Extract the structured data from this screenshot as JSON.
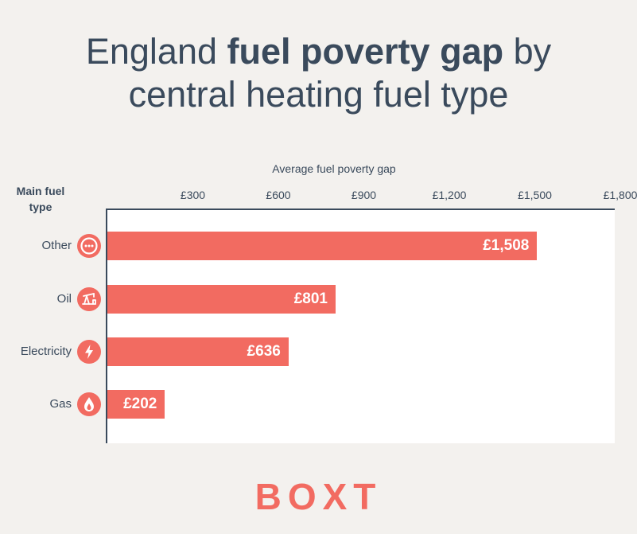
{
  "title": {
    "part1": "England ",
    "bold": "fuel poverty gap",
    "part2": " by",
    "line2": "central heating fuel type"
  },
  "logo": "BOXT",
  "colors": {
    "bar": "#f26b61",
    "text": "#3a4a5c",
    "background": "#f3f1ee",
    "plot": "#ffffff"
  },
  "chart_data": {
    "type": "bar",
    "orientation": "horizontal",
    "title": "England fuel poverty gap by central heating fuel type",
    "xlabel": "Average fuel poverty gap",
    "ylabel": "Main fuel type",
    "xlim": [
      0,
      1800
    ],
    "ticks": [
      "£300",
      "£600",
      "£900",
      "£1,200",
      "£1,500",
      "£1,800"
    ],
    "tick_values": [
      300,
      600,
      900,
      1200,
      1500,
      1800
    ],
    "categories": [
      "Other",
      "Oil",
      "Electricity",
      "Gas"
    ],
    "icons": [
      "more-dots-icon",
      "oil-pump-icon",
      "lightning-icon",
      "flame-icon"
    ],
    "values": [
      1508,
      801,
      636,
      202
    ],
    "value_labels": [
      "£1,508",
      "£801",
      "£636",
      "£202"
    ]
  }
}
